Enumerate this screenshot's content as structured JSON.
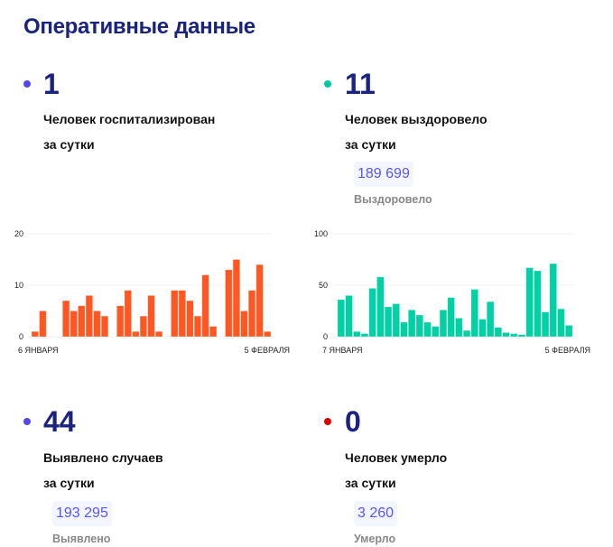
{
  "title": "Оперативные данные",
  "cards": [
    {
      "value": "1",
      "line1": "Человек госпитализирован",
      "line2": "за сутки",
      "dot": "#5048f0"
    },
    {
      "value": "11",
      "line1": "Человек выздоровело",
      "line2": "за сутки",
      "total": "189 699",
      "total_label": "Выздоровело",
      "dot": "#00c9a0"
    },
    {
      "value": "44",
      "line1": "Выявлено случаев",
      "line2": "за сутки",
      "total": "193 295",
      "total_label": "Выявлено",
      "dot": "#5048f0"
    },
    {
      "value": "0",
      "line1": "Человек умерло",
      "line2": "за сутки",
      "total": "3 260",
      "total_label": "Умерло",
      "dot": "#e00000"
    }
  ],
  "chart_data": [
    {
      "type": "bar",
      "color": "#ff5722",
      "ylim": [
        0,
        20
      ],
      "yticks": [
        "0",
        "10",
        "20"
      ],
      "x_start": "6 ЯНВАРЯ",
      "x_end": "5 ФЕВРАЛЯ",
      "values": [
        1,
        5,
        0,
        0,
        7,
        5,
        6,
        8,
        5,
        4,
        0,
        6,
        9,
        1,
        4,
        8,
        1,
        0,
        9,
        9,
        7,
        4,
        12,
        2,
        0,
        13,
        15,
        5,
        9,
        14,
        1
      ]
    },
    {
      "type": "bar",
      "color": "#00d1a4",
      "ylim": [
        0,
        100
      ],
      "yticks": [
        "0",
        "50",
        "100"
      ],
      "x_start": "7 ЯНВАРЯ",
      "x_end": "5 ФЕВРАЛЯ",
      "values": [
        36,
        40,
        5,
        3,
        47,
        58,
        29,
        32,
        14,
        26,
        21,
        14,
        10,
        26,
        38,
        18,
        6,
        46,
        17,
        34,
        9,
        4,
        3,
        2,
        67,
        64,
        24,
        71,
        27,
        11
      ]
    }
  ]
}
